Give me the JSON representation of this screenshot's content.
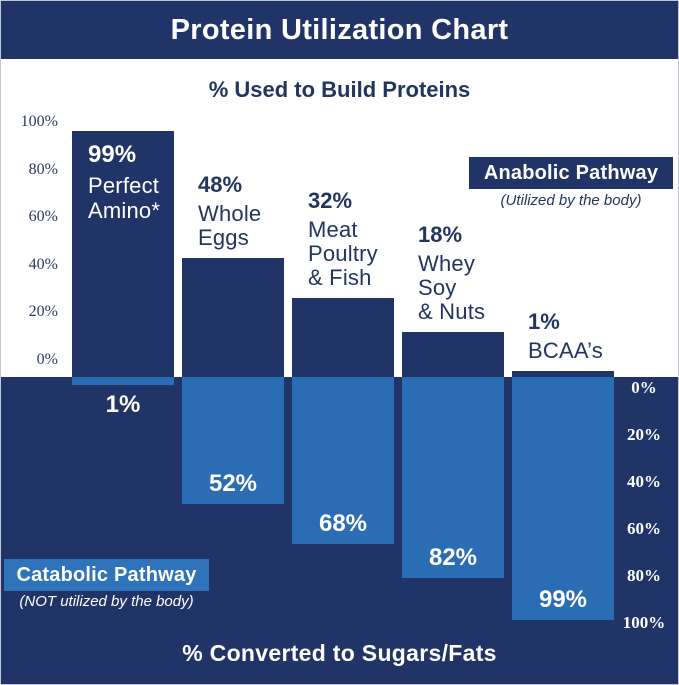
{
  "page": {
    "title": "Protein Utilization Chart",
    "top_axis_label": "% Used to Build Proteins",
    "bottom_axis_label": "% Converted to Sugars/Fats",
    "anabolic": {
      "label": "Anabolic Pathway",
      "caption": "(Utilized by the body)"
    },
    "catabolic": {
      "label": "Catabolic Pathway",
      "caption": "(NOT utilized by the body)"
    }
  },
  "colors": {
    "navy": "#213467",
    "light_blue": "#2a6db4",
    "white": "#ffffff"
  },
  "chart_data": {
    "type": "bar",
    "orientation": "diverging-vertical",
    "title": "Protein Utilization Chart",
    "top_section": {
      "label": "% Used to Build Proteins",
      "legend": "Anabolic Pathway",
      "legend_caption": "(Utilized by the body)",
      "ticks": [
        "100%",
        "80%",
        "60%",
        "40%",
        "20%",
        "0%"
      ],
      "range": [
        0,
        100
      ]
    },
    "bottom_section": {
      "label": "% Converted to Sugars/Fats",
      "legend": "Catabolic Pathway",
      "legend_caption": "(NOT utilized by the body)",
      "ticks": [
        "0%",
        "20%",
        "40%",
        "60%",
        "80%",
        "100%"
      ],
      "range": [
        0,
        100
      ]
    },
    "categories": [
      "Perfect Amino*",
      "Whole Eggs",
      "Meat Poultry & Fish",
      "Whey Soy & Nuts",
      "BCAA’s"
    ],
    "series": [
      {
        "name": "% Used to Build Proteins",
        "values": [
          99,
          48,
          32,
          18,
          1
        ]
      },
      {
        "name": "% Converted to Sugars/Fats",
        "values": [
          1,
          52,
          68,
          82,
          99
        ]
      }
    ],
    "bars": [
      {
        "name_lines": [
          "Perfect",
          "Amino*"
        ],
        "build": 99,
        "build_label": "99%",
        "converted": 1,
        "converted_label": "1%"
      },
      {
        "name_lines": [
          "Whole",
          "Eggs"
        ],
        "build": 48,
        "build_label": "48%",
        "converted": 52,
        "converted_label": "52%"
      },
      {
        "name_lines": [
          "Meat",
          "Poultry",
          "& Fish"
        ],
        "build": 32,
        "build_label": "32%",
        "converted": 68,
        "converted_label": "68%"
      },
      {
        "name_lines": [
          "Whey",
          "Soy",
          "& Nuts"
        ],
        "build": 18,
        "build_label": "18%",
        "converted": 82,
        "converted_label": "82%"
      },
      {
        "name_lines": [
          "BCAA’s"
        ],
        "build": 1,
        "build_label": "1%",
        "converted": 99,
        "converted_label": "99%"
      }
    ]
  }
}
